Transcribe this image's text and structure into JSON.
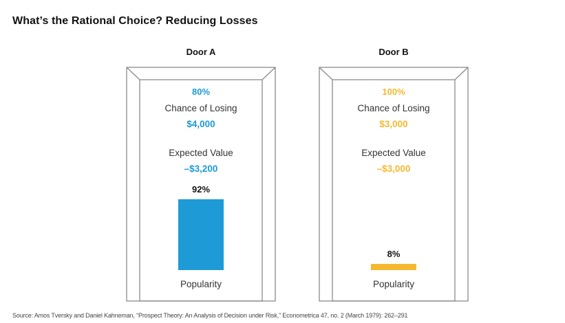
{
  "title": "What’s the Rational Choice? Reducing Losses",
  "colors": {
    "door_a": "#1e9ad6",
    "door_b": "#f5b82e",
    "frame": "#8a8a8a"
  },
  "doors": [
    {
      "label": "Door A",
      "percent": "80%",
      "chance_label": "Chance of Losing",
      "amount": "$4,000",
      "ev_label": "Expected Value",
      "ev_value": "–$3,200",
      "popularity_label": "Popularity",
      "popularity_text": "92%"
    },
    {
      "label": "Door B",
      "percent": "100%",
      "chance_label": "Chance of Losing",
      "amount": "$3,000",
      "ev_label": "Expected Value",
      "ev_value": "–$3,000",
      "popularity_label": "Popularity",
      "popularity_text": "8%"
    }
  ],
  "chart_data": {
    "type": "bar",
    "categories": [
      "Door A",
      "Door B"
    ],
    "values": [
      92,
      8
    ],
    "ylim": [
      0,
      100
    ],
    "xlabel": "Popularity",
    "ylabel": "",
    "data_labels": [
      "92%",
      "8%"
    ]
  },
  "source": "Source: Amos Tversky and Daniel Kahneman, “Prospect Theory: An Analysis of Decision under Risk,” Econometrica 47, no. 2 (March 1979): 262–291"
}
